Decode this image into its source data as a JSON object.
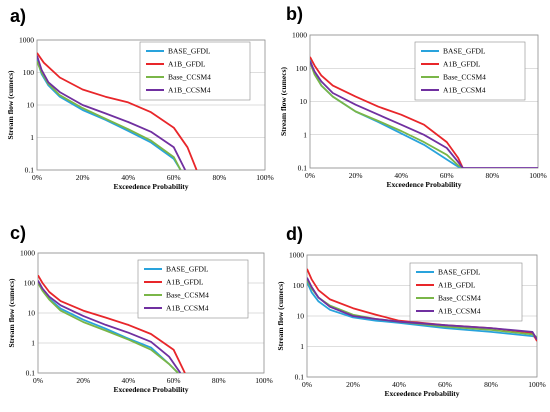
{
  "chart_data": [
    {
      "type": "line",
      "panel_label": "a)",
      "xlabel": "Exceedence Probability",
      "ylabel": "Stream flow (cumecs)",
      "x_scale": "linear",
      "y_scale": "log",
      "xlim": [
        0,
        100
      ],
      "ylim": [
        0.1,
        1000
      ],
      "x_ticks": [
        "0%",
        "20%",
        "40%",
        "60%",
        "80%",
        "100%"
      ],
      "y_ticks": [
        "0.1",
        "1",
        "10",
        "100",
        "1000"
      ],
      "grid": "horizontal",
      "legend_position": "top-right",
      "series": [
        {
          "name": "BASE_GFDL",
          "color": "#29a3dc",
          "x": [
            0,
            2,
            5,
            10,
            20,
            30,
            40,
            50,
            60,
            63
          ],
          "y": [
            250,
            90,
            40,
            18,
            7,
            3.5,
            1.6,
            0.7,
            0.22,
            0.1
          ]
        },
        {
          "name": "A1B_GFDL",
          "color": "#e8262a",
          "x": [
            0,
            3,
            10,
            20,
            30,
            40,
            50,
            60,
            66,
            70
          ],
          "y": [
            400,
            200,
            70,
            30,
            18,
            12,
            6,
            2,
            0.5,
            0.1
          ]
        },
        {
          "name": "Base_CCSM4",
          "color": "#7ab648",
          "x": [
            0,
            2,
            5,
            10,
            20,
            30,
            40,
            50,
            60,
            63
          ],
          "y": [
            220,
            100,
            45,
            20,
            8,
            3.8,
            1.8,
            0.8,
            0.25,
            0.1
          ]
        },
        {
          "name": "A1B_CCSM4",
          "color": "#7030a0",
          "x": [
            0,
            2,
            5,
            10,
            20,
            30,
            40,
            50,
            60,
            65
          ],
          "y": [
            330,
            120,
            50,
            25,
            10,
            5.5,
            3,
            1.5,
            0.5,
            0.1
          ]
        }
      ]
    },
    {
      "type": "line",
      "panel_label": "b)",
      "xlabel": "Exceedence Probability",
      "ylabel": "Stream flow (cumecs)",
      "x_scale": "linear",
      "y_scale": "log",
      "xlim": [
        0,
        100
      ],
      "ylim": [
        0.1,
        1000
      ],
      "x_ticks": [
        "0%",
        "20%",
        "40%",
        "60%",
        "80%",
        "100%"
      ],
      "y_ticks": [
        "0.1",
        "1",
        "10",
        "100",
        "1000"
      ],
      "grid": "horizontal",
      "legend_position": "top-right",
      "series": [
        {
          "name": "BASE_GFDL",
          "color": "#29a3dc",
          "x": [
            0,
            2,
            5,
            10,
            20,
            30,
            40,
            50,
            60,
            64,
            66
          ],
          "y": [
            180,
            70,
            30,
            14,
            5,
            2.4,
            1.1,
            0.5,
            0.18,
            0.12,
            0.1
          ]
        },
        {
          "name": "A1B_GFDL",
          "color": "#e8262a",
          "x": [
            0,
            2,
            5,
            10,
            20,
            30,
            40,
            50,
            60,
            65,
            67
          ],
          "y": [
            220,
            120,
            60,
            30,
            14,
            7,
            4,
            2,
            0.6,
            0.2,
            0.1
          ]
        },
        {
          "name": "Base_CCSM4",
          "color": "#7ab648",
          "x": [
            0,
            2,
            5,
            10,
            20,
            30,
            40,
            50,
            60,
            65,
            67
          ],
          "y": [
            150,
            65,
            30,
            14,
            5,
            2.6,
            1.3,
            0.6,
            0.25,
            0.12,
            0.1
          ]
        },
        {
          "name": "A1B_CCSM4",
          "color": "#7030a0",
          "x": [
            0,
            2,
            5,
            10,
            20,
            30,
            40,
            50,
            60,
            65,
            67,
            85,
            100
          ],
          "y": [
            160,
            80,
            40,
            18,
            8,
            4,
            2,
            1,
            0.4,
            0.15,
            0.1,
            0.1,
            0.1
          ]
        }
      ]
    },
    {
      "type": "line",
      "panel_label": "c)",
      "xlabel": "Exceedence Probability",
      "ylabel": "Stream flow (cumecs)",
      "x_scale": "linear",
      "y_scale": "log",
      "xlim": [
        0,
        100
      ],
      "ylim": [
        0.1,
        1000
      ],
      "x_ticks": [
        "0%",
        "20%",
        "40%",
        "60%",
        "80%",
        "100%"
      ],
      "y_ticks": [
        "0.1",
        "1",
        "10",
        "100",
        "1000"
      ],
      "grid": "horizontal",
      "legend_position": "top-right",
      "series": [
        {
          "name": "BASE_GFDL",
          "color": "#29a3dc",
          "x": [
            0,
            2,
            5,
            10,
            20,
            30,
            40,
            50,
            58,
            62
          ],
          "y": [
            110,
            60,
            30,
            14,
            6,
            3,
            1.4,
            0.7,
            0.2,
            0.1
          ]
        },
        {
          "name": "A1B_GFDL",
          "color": "#e8262a",
          "x": [
            0,
            2,
            5,
            10,
            20,
            30,
            40,
            50,
            60,
            65
          ],
          "y": [
            180,
            100,
            50,
            25,
            12,
            7,
            4,
            2,
            0.6,
            0.1
          ]
        },
        {
          "name": "Base_CCSM4",
          "color": "#7ab648",
          "x": [
            0,
            2,
            5,
            10,
            20,
            30,
            40,
            50,
            58,
            62
          ],
          "y": [
            100,
            55,
            28,
            12,
            5,
            2.6,
            1.3,
            0.6,
            0.2,
            0.1
          ]
        },
        {
          "name": "A1B_CCSM4",
          "color": "#7030a0",
          "x": [
            0,
            2,
            5,
            10,
            20,
            30,
            40,
            50,
            58,
            63
          ],
          "y": [
            120,
            65,
            35,
            18,
            8,
            4,
            2.2,
            1.1,
            0.35,
            0.1
          ]
        }
      ]
    },
    {
      "type": "line",
      "panel_label": "d)",
      "xlabel": "Exceedence Probability",
      "ylabel": "Stream flow (cumecs)",
      "x_scale": "linear",
      "y_scale": "log",
      "xlim": [
        0,
        100
      ],
      "ylim": [
        0.1,
        1000
      ],
      "x_ticks": [
        "0%",
        "20%",
        "40%",
        "60%",
        "80%",
        "100%"
      ],
      "y_ticks": [
        "0.1",
        "1",
        "10",
        "100",
        "1000"
      ],
      "grid": "horizontal",
      "legend_position": "top-right",
      "series": [
        {
          "name": "BASE_GFDL",
          "color": "#29a3dc",
          "x": [
            0,
            2,
            5,
            10,
            20,
            30,
            40,
            60,
            80,
            98,
            100
          ],
          "y": [
            130,
            60,
            30,
            16,
            9,
            7,
            6,
            4,
            3,
            2.2,
            2
          ]
        },
        {
          "name": "A1B_GFDL",
          "color": "#e8262a",
          "x": [
            0,
            2,
            5,
            10,
            20,
            30,
            40,
            60,
            80,
            98,
            100
          ],
          "y": [
            350,
            160,
            70,
            35,
            18,
            11,
            7,
            5,
            4,
            2.8,
            1.5
          ]
        },
        {
          "name": "Base_CCSM4",
          "color": "#7ab648",
          "x": [
            0,
            2,
            5,
            10,
            20,
            30,
            40,
            60,
            80,
            98,
            100
          ],
          "y": [
            150,
            80,
            40,
            22,
            11,
            8,
            6.5,
            4.5,
            3.5,
            2.5,
            2
          ]
        },
        {
          "name": "A1B_CCSM4",
          "color": "#7030a0",
          "x": [
            0,
            2,
            5,
            10,
            20,
            30,
            40,
            60,
            80,
            98,
            100
          ],
          "y": [
            180,
            90,
            40,
            20,
            10,
            8,
            6.5,
            5,
            4,
            3,
            1.7
          ]
        }
      ]
    }
  ]
}
